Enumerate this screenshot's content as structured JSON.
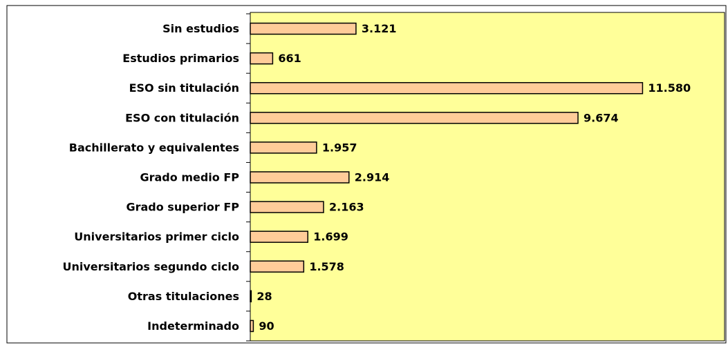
{
  "chart_data": {
    "type": "bar",
    "orientation": "horizontal",
    "categories": [
      "Sin estudios",
      "Estudios primarios",
      "ESO sin titulación",
      "ESO con titulación",
      "Bachillerato y equivalentes",
      "Grado medio FP",
      "Grado superior FP",
      "Universitarios primer ciclo",
      "Universitarios segundo ciclo",
      "Otras titulaciones",
      "Indeterminado"
    ],
    "values": [
      3121,
      661,
      11580,
      9674,
      1957,
      2914,
      2163,
      1699,
      1578,
      28,
      90
    ],
    "value_labels": [
      "3.121",
      "661",
      "11.580",
      "9.674",
      "1.957",
      "2.914",
      "2.163",
      "1.699",
      "1.578",
      "28",
      "90"
    ],
    "color": "#ffcc99",
    "plot_background": "#ffff99",
    "xlim": [
      0,
      14000
    ]
  }
}
